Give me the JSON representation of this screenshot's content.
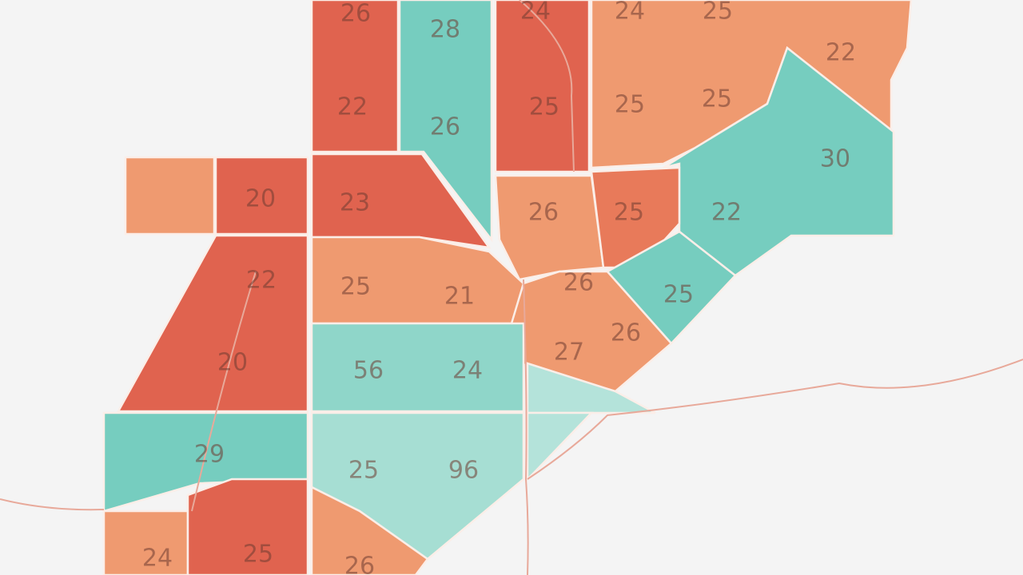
{
  "regions": [
    {
      "label": "26"
    },
    {
      "label": "28"
    },
    {
      "label": "24"
    },
    {
      "label": "24"
    },
    {
      "label": "25"
    },
    {
      "label": "22"
    },
    {
      "label": "22"
    },
    {
      "label": "26"
    },
    {
      "label": "25"
    },
    {
      "label": "25"
    },
    {
      "label": "25"
    },
    {
      "label": "30"
    },
    {
      "label": "20"
    },
    {
      "label": "23"
    },
    {
      "label": "26"
    },
    {
      "label": "25"
    },
    {
      "label": "22"
    },
    {
      "label": "22"
    },
    {
      "label": "25"
    },
    {
      "label": "21"
    },
    {
      "label": "26"
    },
    {
      "label": "25"
    },
    {
      "label": "26"
    },
    {
      "label": "20"
    },
    {
      "label": "56"
    },
    {
      "label": "24"
    },
    {
      "label": "27"
    },
    {
      "label": "29"
    },
    {
      "label": "25"
    },
    {
      "label": "96"
    },
    {
      "label": "24"
    },
    {
      "label": "25"
    },
    {
      "label": "26"
    }
  ]
}
